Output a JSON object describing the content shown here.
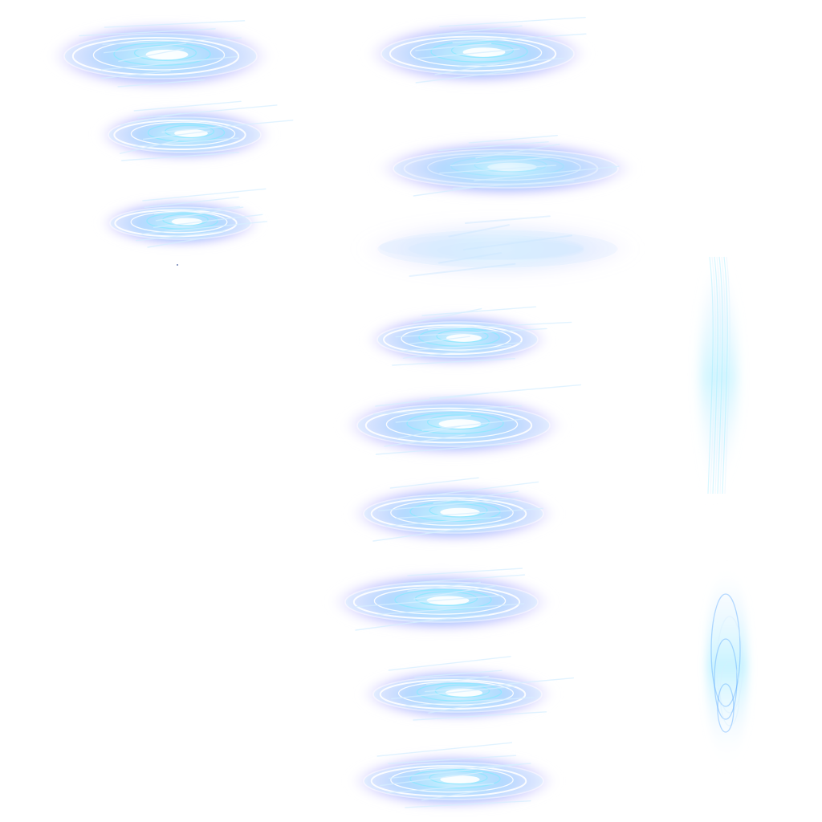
{
  "sprite_sheet": {
    "background_color": "#ffffff",
    "palette": {
      "core_blue": "#59a8ff",
      "bright_cyan": "#8fe7ff",
      "pale_blue": "#d7efff",
      "violet_edge": "#8f83ff",
      "white": "#ffffff",
      "mist_blue": "#cbe7ff"
    },
    "frames": [
      {
        "id": "left-1",
        "style": "vortex"
      },
      {
        "id": "left-2",
        "style": "vortex"
      },
      {
        "id": "left-3",
        "style": "vortex"
      },
      {
        "id": "right-1",
        "style": "vortex"
      },
      {
        "id": "right-2",
        "style": "faded"
      },
      {
        "id": "right-3",
        "style": "mist"
      },
      {
        "id": "right-4",
        "style": "vortex"
      },
      {
        "id": "right-5",
        "style": "vortex"
      },
      {
        "id": "right-6",
        "style": "vortex"
      },
      {
        "id": "right-7",
        "style": "vortex"
      },
      {
        "id": "right-8",
        "style": "vortex"
      },
      {
        "id": "right-9",
        "style": "vortex"
      }
    ],
    "vertical_trails": [
      {
        "id": "trail-upper",
        "style": "streak"
      },
      {
        "id": "trail-lower",
        "style": "swirl"
      }
    ]
  }
}
